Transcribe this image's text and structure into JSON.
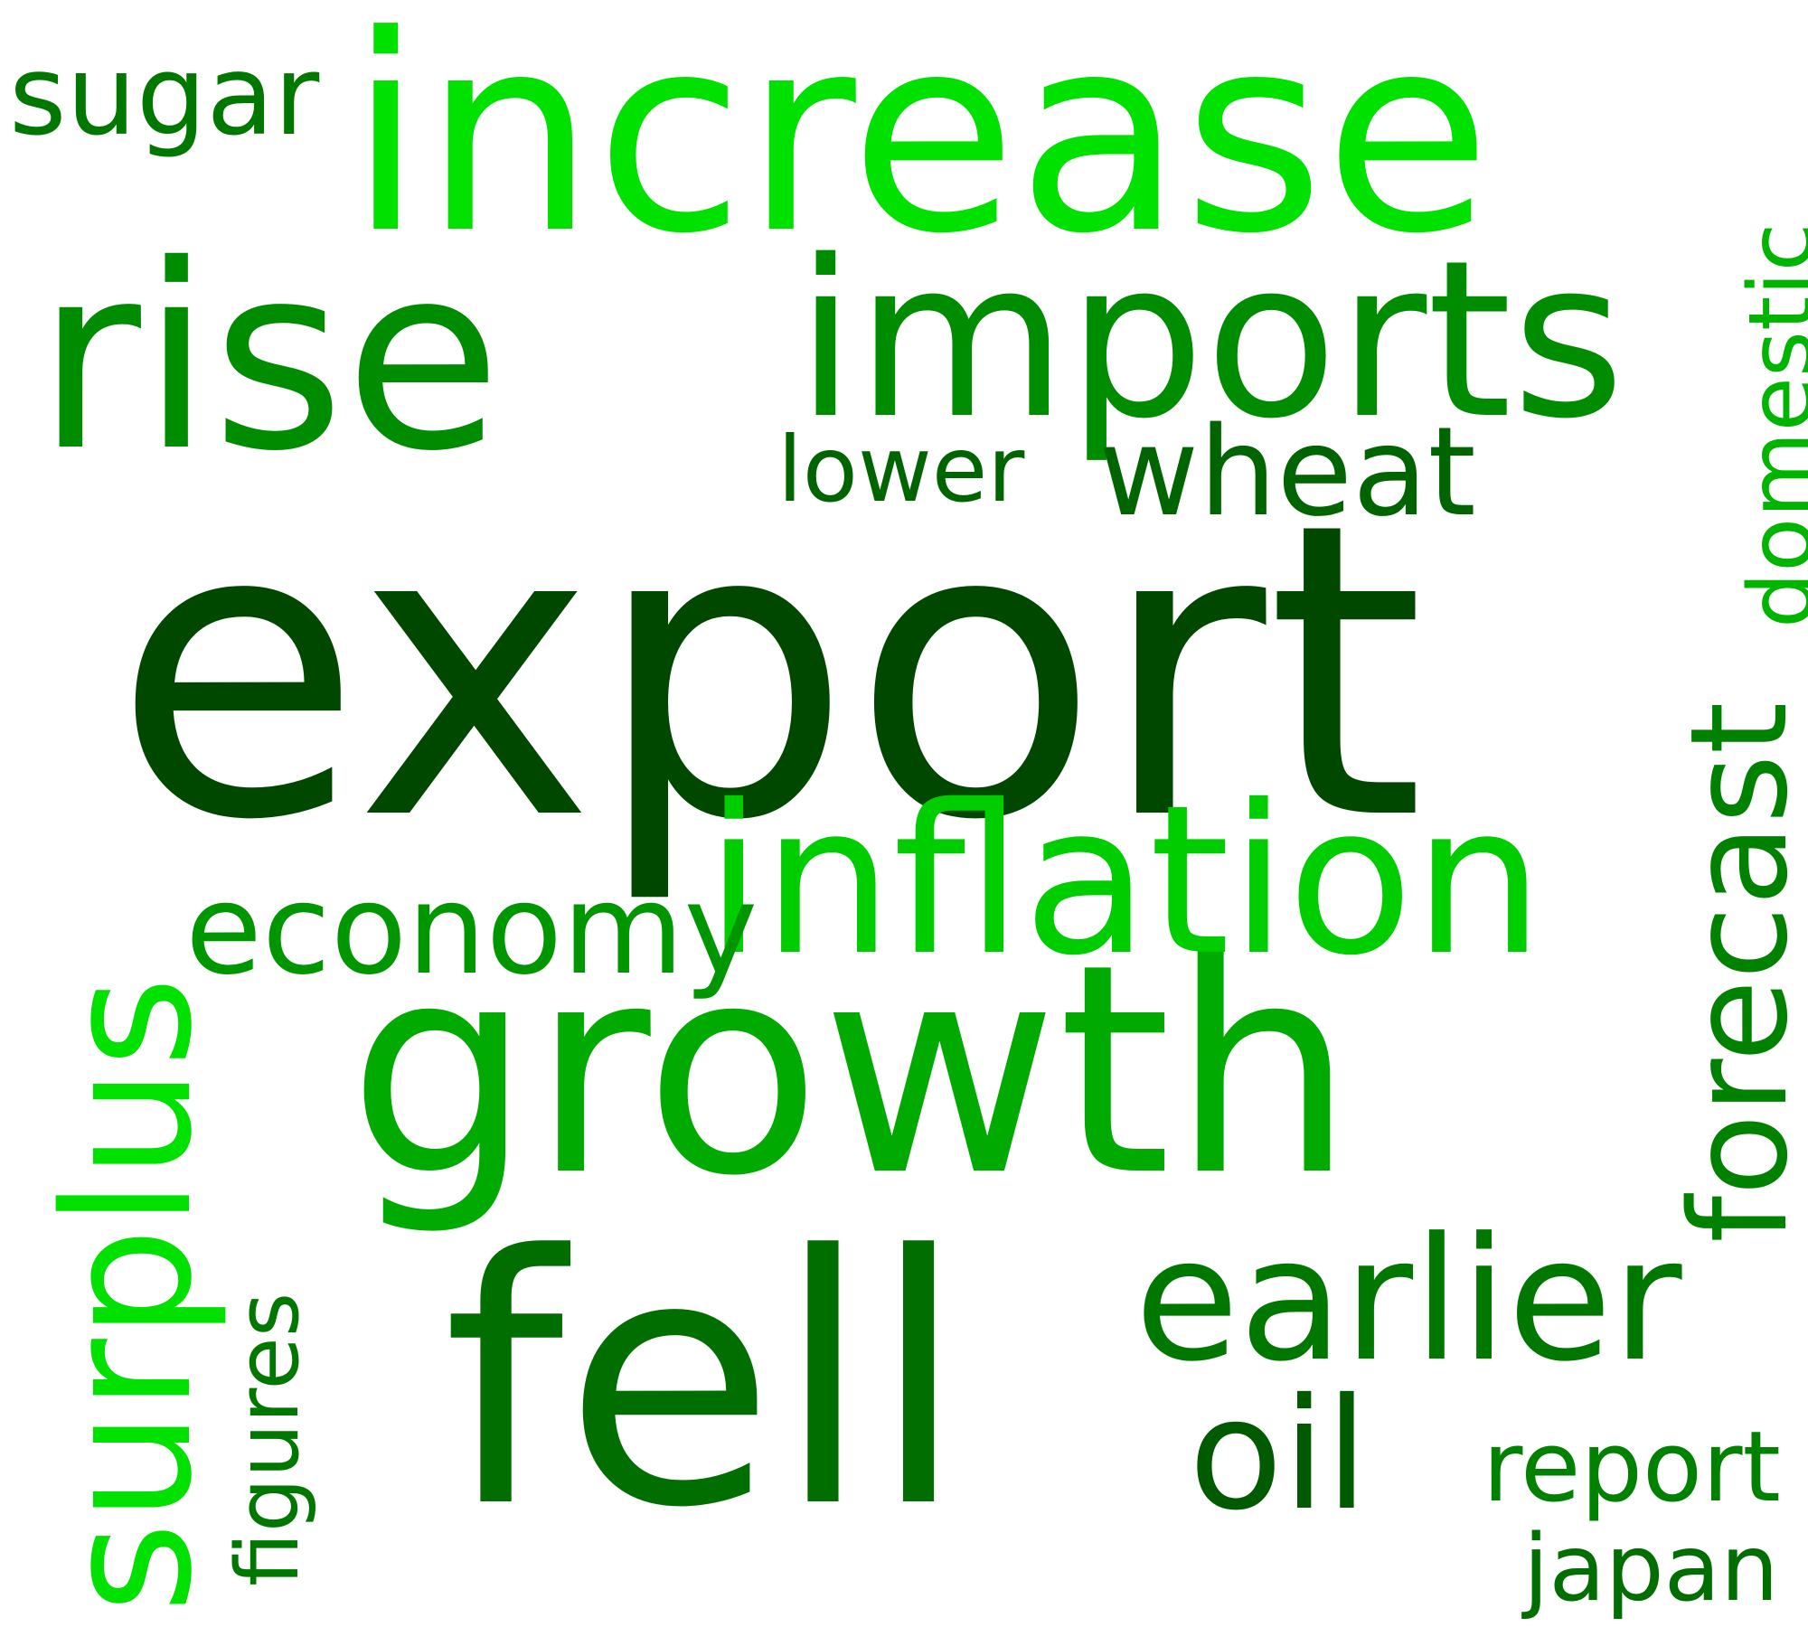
{
  "words": {
    "export": {
      "text": "export",
      "color": "#004800"
    },
    "increase": {
      "text": "increase",
      "color": "#00e100"
    },
    "rise": {
      "text": "rise",
      "color": "#008c00"
    },
    "imports": {
      "text": "imports",
      "color": "#008c00"
    },
    "growth": {
      "text": "growth",
      "color": "#00aa00"
    },
    "fell": {
      "text": "fell",
      "color": "#006e00"
    },
    "inflation": {
      "text": "inflation",
      "color": "#00cd00"
    },
    "surplus": {
      "text": "surplus",
      "color": "#00e100"
    },
    "economy": {
      "text": "economy",
      "color": "#009600"
    },
    "earlier": {
      "text": "earlier",
      "color": "#007800"
    },
    "oil": {
      "text": "oil",
      "color": "#005a00"
    },
    "forecast": {
      "text": "forecast",
      "color": "#008200"
    },
    "wheat": {
      "text": "wheat",
      "color": "#006400"
    },
    "sugar": {
      "text": "sugar",
      "color": "#007800"
    },
    "domestic": {
      "text": "domestic",
      "color": "#00b400"
    },
    "lower": {
      "text": "lower",
      "color": "#006400"
    },
    "figures": {
      "text": "figures",
      "color": "#007800"
    },
    "report": {
      "text": "report",
      "color": "#008200"
    },
    "japan": {
      "text": "japan",
      "color": "#006e00"
    }
  }
}
